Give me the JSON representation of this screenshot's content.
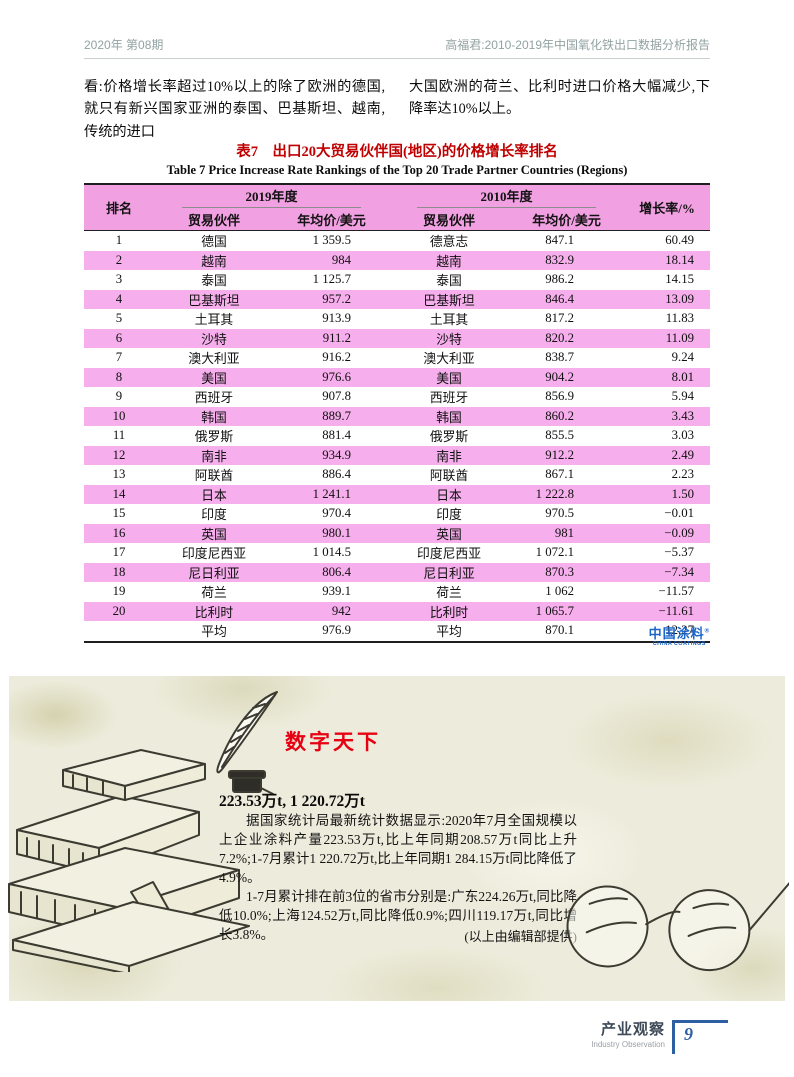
{
  "header": {
    "issue": "2020年  第08期",
    "article": "高福君:2010-2019年中国氧化铁出口数据分析报告"
  },
  "intro": {
    "left": "看:价格增长率超过10%以上的除了欧洲的德国,就只有新兴国家亚洲的泰国、巴基斯坦、越南,传统的进口",
    "right": "大国欧洲的荷兰、比利时进口价格大幅减少,下降率达10%以上。"
  },
  "table": {
    "title_zh": "表7　出口20大贸易伙伴国(地区)的价格增长率排名",
    "title_en": "Table 7   Price Increase Rate Rankings of the Top 20 Trade Partner Countries (Regions)",
    "headers": {
      "rank": "排名",
      "group_2019": "2019年度",
      "group_2010": "2010年度",
      "partner": "贸易伙伴",
      "avg_price": "年均价/美元",
      "growth": "增长率/%"
    },
    "rows": [
      [
        "1",
        "德国",
        "1 359.5",
        "德意志",
        "847.1",
        "60.49"
      ],
      [
        "2",
        "越南",
        "984",
        "越南",
        "832.9",
        "18.14"
      ],
      [
        "3",
        "泰国",
        "1 125.7",
        "泰国",
        "986.2",
        "14.15"
      ],
      [
        "4",
        "巴基斯坦",
        "957.2",
        "巴基斯坦",
        "846.4",
        "13.09"
      ],
      [
        "5",
        "土耳其",
        "913.9",
        "土耳其",
        "817.2",
        "11.83"
      ],
      [
        "6",
        "沙特",
        "911.2",
        "沙特",
        "820.2",
        "11.09"
      ],
      [
        "7",
        "澳大利亚",
        "916.2",
        "澳大利亚",
        "838.7",
        "9.24"
      ],
      [
        "8",
        "美国",
        "976.6",
        "美国",
        "904.2",
        "8.01"
      ],
      [
        "9",
        "西班牙",
        "907.8",
        "西班牙",
        "856.9",
        "5.94"
      ],
      [
        "10",
        "韩国",
        "889.7",
        "韩国",
        "860.2",
        "3.43"
      ],
      [
        "11",
        "俄罗斯",
        "881.4",
        "俄罗斯",
        "855.5",
        "3.03"
      ],
      [
        "12",
        "南非",
        "934.9",
        "南非",
        "912.2",
        "2.49"
      ],
      [
        "13",
        "阿联酋",
        "886.4",
        "阿联酋",
        "867.1",
        "2.23"
      ],
      [
        "14",
        "日本",
        "1 241.1",
        "日本",
        "1 222.8",
        "1.50"
      ],
      [
        "15",
        "印度",
        "970.4",
        "印度",
        "970.5",
        "−0.01"
      ],
      [
        "16",
        "英国",
        "980.1",
        "英国",
        "981",
        "−0.09"
      ],
      [
        "17",
        "印度尼西亚",
        "1 014.5",
        "印度尼西亚",
        "1 072.1",
        "−5.37"
      ],
      [
        "18",
        "尼日利亚",
        "806.4",
        "尼日利亚",
        "870.3",
        "−7.34"
      ],
      [
        "19",
        "荷兰",
        "939.1",
        "荷兰",
        "1 062",
        "−11.57"
      ],
      [
        "20",
        "比利时",
        "942",
        "比利时",
        "1 065.7",
        "−11.61"
      ],
      [
        "",
        "平均",
        "976.9",
        "平均",
        "870.1",
        "12.27"
      ]
    ]
  },
  "logo": {
    "name_zh": "中国涂料",
    "reg": "®",
    "name_en": "CHINA COATINGS"
  },
  "digest": {
    "title": "数字天下",
    "headline": "223.53万t, 1 220.72万t",
    "para1": "据国家统计局最新统计数据显示:2020年7月全国规模以上企业涂料产量223.53万t,比上年同期208.57万t同比上升7.2%;1-7月累计1 220.72万t,比上年同期1 284.15万t同比降低了4.9%。",
    "para2": "1-7月累计排在前3位的省市分别是:广东224.26万t,同比降低10.0%;上海124.52万t,同比降低0.9%;四川119.17万t,同比增长3.8%。",
    "credit": "(以上由编辑部提供)"
  },
  "footer": {
    "section_zh": "产业观察",
    "section_en": "Industry Observation",
    "page_number": "9"
  },
  "colors": {
    "title_red": "#c00000",
    "table_pink": "#f1a0e2",
    "table_pink_light": "#f6aeec",
    "digest_red": "#e60012",
    "logo_blue": "#1b65c9",
    "footer_blue": "#2e5fa3",
    "panel_bg": "#edecdc",
    "header_gray": "#92a2a2"
  }
}
